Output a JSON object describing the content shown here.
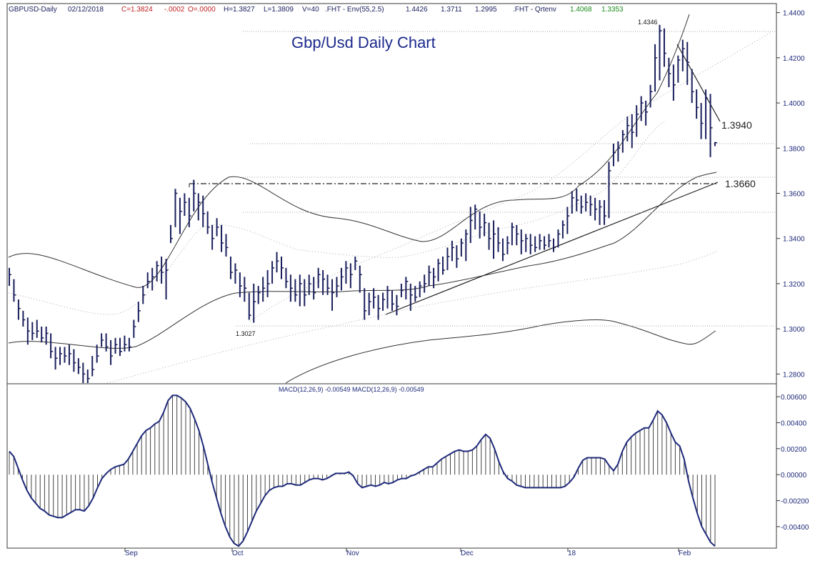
{
  "header": {
    "symbol": "GBPUSD-Daily",
    "date": "02/12/2018",
    "close": "C=1.3824",
    "change": "-.0002",
    "open": "O=.0000",
    "high": "H=1.3827",
    "low": "L=1.3809",
    "volume": "V=40",
    "env_label": ".FHT - Env(55,2.5)",
    "env_values": [
      "1.4426",
      "1.3711",
      "1.2995"
    ],
    "qrtenv_label": ".FHT - Qrtenv",
    "qrtenv_values": [
      "1.4068",
      "1.3353"
    ]
  },
  "colors": {
    "background": "#ffffff",
    "bars": "#1a1f5c",
    "title": "#1c2a8c",
    "close_text": "#c02020",
    "qrtenv_text": "#1e8a1e",
    "env_text": "#1a1f5c",
    "macd_line": "#1f2a7a",
    "axis_text": "#1f2a7a",
    "frame": "#3a3a3a"
  },
  "chart_data": [
    {
      "type": "line",
      "title": "Gbp/Usd Daily Chart",
      "series": [
        {
          "values": [
            [
              1.324,
              1.327,
              1.319
            ],
            [
              1.315,
              1.322,
              1.312
            ],
            [
              1.309,
              1.313,
              1.304
            ],
            [
              1.304,
              1.308,
              1.301
            ],
            [
              1.299,
              1.305,
              1.293
            ],
            [
              1.298,
              1.303,
              1.295
            ],
            [
              1.299,
              1.304,
              1.296
            ],
            [
              1.296,
              1.301,
              1.294
            ],
            [
              1.298,
              1.301,
              1.293
            ],
            [
              1.29,
              1.298,
              1.287
            ],
            [
              1.287,
              1.292,
              1.282
            ],
            [
              1.289,
              1.292,
              1.284
            ],
            [
              1.288,
              1.292,
              1.285
            ],
            [
              1.289,
              1.293,
              1.284
            ],
            [
              1.285,
              1.291,
              1.281
            ],
            [
              1.283,
              1.287,
              1.28
            ],
            [
              1.28,
              1.285,
              1.276
            ],
            [
              1.278,
              1.282,
              1.276
            ],
            [
              1.282,
              1.288,
              1.279
            ],
            [
              1.288,
              1.293,
              1.285
            ],
            [
              1.295,
              1.298,
              1.292
            ],
            [
              1.292,
              1.298,
              1.29
            ],
            [
              1.288,
              1.295,
              1.284
            ],
            [
              1.293,
              1.296,
              1.289
            ],
            [
              1.29,
              1.296,
              1.288
            ],
            [
              1.293,
              1.297,
              1.29
            ],
            [
              1.292,
              1.296,
              1.29
            ],
            [
              1.301,
              1.304,
              1.296
            ],
            [
              1.308,
              1.312,
              1.303
            ],
            [
              1.315,
              1.319,
              1.311
            ],
            [
              1.321,
              1.325,
              1.318
            ],
            [
              1.323,
              1.327,
              1.317
            ],
            [
              1.328,
              1.33,
              1.321
            ],
            [
              1.325,
              1.332,
              1.32
            ],
            [
              1.326,
              1.331,
              1.313
            ],
            [
              1.34,
              1.346,
              1.338
            ],
            [
              1.36,
              1.362,
              1.345
            ],
            [
              1.352,
              1.358,
              1.342
            ],
            [
              1.356,
              1.36,
              1.35
            ],
            [
              1.35,
              1.358,
              1.345
            ],
            [
              1.36,
              1.366,
              1.352
            ],
            [
              1.356,
              1.36,
              1.348
            ],
            [
              1.351,
              1.359,
              1.345
            ],
            [
              1.345,
              1.352,
              1.342
            ],
            [
              1.34,
              1.346,
              1.335
            ],
            [
              1.345,
              1.349,
              1.341
            ],
            [
              1.338,
              1.346,
              1.334
            ],
            [
              1.336,
              1.342,
              1.332
            ],
            [
              1.325,
              1.332,
              1.322
            ],
            [
              1.326,
              1.329,
              1.32
            ],
            [
              1.319,
              1.325,
              1.314
            ],
            [
              1.318,
              1.323,
              1.312
            ],
            [
              1.306,
              1.316,
              1.304
            ],
            [
              1.312,
              1.32,
              1.3027
            ],
            [
              1.316,
              1.319,
              1.311
            ],
            [
              1.318,
              1.323,
              1.312
            ],
            [
              1.32,
              1.326,
              1.314
            ],
            [
              1.327,
              1.33,
              1.32
            ],
            [
              1.33,
              1.334,
              1.325
            ],
            [
              1.327,
              1.332,
              1.322
            ],
            [
              1.321,
              1.327,
              1.318
            ],
            [
              1.318,
              1.324,
              1.312
            ],
            [
              1.315,
              1.322,
              1.312
            ],
            [
              1.32,
              1.324,
              1.31
            ],
            [
              1.315,
              1.322,
              1.31
            ],
            [
              1.32,
              1.324,
              1.315
            ],
            [
              1.316,
              1.323,
              1.313
            ],
            [
              1.324,
              1.327,
              1.318
            ],
            [
              1.322,
              1.326,
              1.315
            ],
            [
              1.318,
              1.324,
              1.315
            ],
            [
              1.316,
              1.322,
              1.308
            ],
            [
              1.319,
              1.323,
              1.314
            ],
            [
              1.323,
              1.327,
              1.317
            ],
            [
              1.327,
              1.33,
              1.32
            ],
            [
              1.324,
              1.329,
              1.318
            ],
            [
              1.33,
              1.332,
              1.326
            ],
            [
              1.324,
              1.328,
              1.316
            ],
            [
              1.308,
              1.318,
              1.304
            ],
            [
              1.312,
              1.316,
              1.306
            ],
            [
              1.314,
              1.318,
              1.309
            ],
            [
              1.309,
              1.315,
              1.304
            ],
            [
              1.313,
              1.316,
              1.308
            ],
            [
              1.317,
              1.319,
              1.309
            ],
            [
              1.311,
              1.317,
              1.308
            ],
            [
              1.31,
              1.315,
              1.306
            ],
            [
              1.317,
              1.32,
              1.314
            ],
            [
              1.321,
              1.323,
              1.313
            ],
            [
              1.315,
              1.32,
              1.308
            ],
            [
              1.314,
              1.319,
              1.312
            ],
            [
              1.319,
              1.321,
              1.314
            ],
            [
              1.32,
              1.324,
              1.316
            ],
            [
              1.325,
              1.328,
              1.319
            ],
            [
              1.323,
              1.327,
              1.318
            ],
            [
              1.329,
              1.331,
              1.321
            ],
            [
              1.326,
              1.332,
              1.324
            ],
            [
              1.332,
              1.336,
              1.326
            ],
            [
              1.336,
              1.339,
              1.33
            ],
            [
              1.331,
              1.337,
              1.327
            ],
            [
              1.338,
              1.34,
              1.332
            ],
            [
              1.342,
              1.344,
              1.33
            ],
            [
              1.348,
              1.354,
              1.338
            ],
            [
              1.353,
              1.355,
              1.344
            ],
            [
              1.345,
              1.352,
              1.34
            ],
            [
              1.347,
              1.351,
              1.341
            ],
            [
              1.34,
              1.347,
              1.335
            ],
            [
              1.342,
              1.348,
              1.331
            ],
            [
              1.338,
              1.345,
              1.334
            ],
            [
              1.333,
              1.34,
              1.33
            ],
            [
              1.338,
              1.341,
              1.333
            ],
            [
              1.345,
              1.347,
              1.337
            ],
            [
              1.342,
              1.346,
              1.337
            ],
            [
              1.339,
              1.344,
              1.333
            ],
            [
              1.34,
              1.342,
              1.334
            ],
            [
              1.337,
              1.342,
              1.333
            ],
            [
              1.336,
              1.341,
              1.334
            ],
            [
              1.339,
              1.342,
              1.335
            ],
            [
              1.337,
              1.341,
              1.335
            ],
            [
              1.339,
              1.342,
              1.336
            ],
            [
              1.336,
              1.34,
              1.334
            ],
            [
              1.342,
              1.344,
              1.336
            ],
            [
              1.346,
              1.348,
              1.34
            ],
            [
              1.35,
              1.354,
              1.342
            ],
            [
              1.358,
              1.361,
              1.351
            ],
            [
              1.357,
              1.362,
              1.352
            ],
            [
              1.354,
              1.359,
              1.351
            ],
            [
              1.356,
              1.36,
              1.352
            ],
            [
              1.355,
              1.359,
              1.35
            ],
            [
              1.353,
              1.358,
              1.348
            ],
            [
              1.354,
              1.357,
              1.346
            ],
            [
              1.35,
              1.357,
              1.346
            ],
            [
              1.37,
              1.374,
              1.349
            ],
            [
              1.378,
              1.382,
              1.372
            ],
            [
              1.38,
              1.383,
              1.374
            ],
            [
              1.386,
              1.388,
              1.378
            ],
            [
              1.39,
              1.394,
              1.383
            ],
            [
              1.387,
              1.395,
              1.38
            ],
            [
              1.395,
              1.399,
              1.385
            ],
            [
              1.4,
              1.403,
              1.392
            ],
            [
              1.396,
              1.401,
              1.39
            ],
            [
              1.405,
              1.408,
              1.398
            ],
            [
              1.42,
              1.426,
              1.405
            ],
            [
              1.432,
              1.4346,
              1.41
            ],
            [
              1.422,
              1.433,
              1.416
            ],
            [
              1.413,
              1.42,
              1.407
            ],
            [
              1.408,
              1.417,
              1.401
            ],
            [
              1.419,
              1.421,
              1.409
            ],
            [
              1.424,
              1.428,
              1.414
            ],
            [
              1.418,
              1.427,
              1.408
            ],
            [
              1.405,
              1.415,
              1.4
            ],
            [
              1.398,
              1.406,
              1.393
            ],
            [
              1.391,
              1.4,
              1.384
            ],
            [
              1.402,
              1.406,
              1.384
            ],
            [
              1.389,
              1.404,
              1.376
            ],
            [
              1.3824,
              1.3827,
              1.3809
            ]
          ]
        }
      ],
      "x_labels": [
        "Sep",
        "Oct",
        "Nov",
        "Dec",
        "18",
        "Feb"
      ],
      "y_ticks": [
        "1.4400",
        "1.4200",
        "1.4000",
        "1.3800",
        "1.3600",
        "1.3400",
        "1.3200",
        "1.3000",
        "1.2800"
      ],
      "ylim": [
        1.276,
        1.444
      ],
      "annotations": {
        "high": "1.4346",
        "low": "1.3027",
        "resistance": "1.3940",
        "support": "1.3660"
      }
    },
    {
      "type": "line",
      "title": "MACD(12,26,9)",
      "header_text": "MACD(12,26,9)  -0.00549  MACD(12,26,9)  -0.00549",
      "y_ticks": [
        "0.00600",
        "0.00400",
        "0.00200",
        "0.00000",
        "-0.00200",
        "-0.00400"
      ],
      "ylim": [
        -0.0056,
        0.0065
      ],
      "values": [
        0.0018,
        0.0014,
        0.0005,
        -0.0004,
        -0.0012,
        -0.0018,
        -0.0022,
        -0.0026,
        -0.0028,
        -0.0031,
        -0.0032,
        -0.0033,
        -0.0033,
        -0.0031,
        -0.0029,
        -0.0027,
        -0.0027,
        -0.0028,
        -0.0024,
        -0.0018,
        -0.001,
        -0.0003,
        0.0001,
        0.0004,
        0.0006,
        0.0007,
        0.0008,
        0.0012,
        0.0018,
        0.0024,
        0.003,
        0.0034,
        0.0036,
        0.0039,
        0.0041,
        0.0048,
        0.0057,
        0.0061,
        0.0061,
        0.0059,
        0.0056,
        0.0051,
        0.0043,
        0.0034,
        0.0022,
        0.0008,
        -0.0006,
        -0.0018,
        -0.003,
        -0.004,
        -0.0048,
        -0.0053,
        -0.0055,
        -0.0051,
        -0.0044,
        -0.0036,
        -0.0028,
        -0.0022,
        -0.0016,
        -0.0012,
        -0.001,
        -0.0009,
        -0.0009,
        -0.0007,
        -0.0007,
        -0.0008,
        -0.0008,
        -0.0006,
        -0.0004,
        -0.0003,
        -0.0003,
        -0.0004,
        -0.0003,
        -0.0001,
        0.0001,
        0.0001,
        0.0001,
        0.0002,
        -0.0001,
        -0.0007,
        -0.001,
        -0.0009,
        -0.0008,
        -0.0009,
        -0.0008,
        -0.0006,
        -0.0007,
        -0.0006,
        -0.0004,
        -0.0003,
        -0.0003,
        -0.0001,
        0.0,
        0.0002,
        0.0004,
        0.0006,
        0.0006,
        0.0009,
        0.0012,
        0.0014,
        0.0016,
        0.0018,
        0.0019,
        0.0018,
        0.0018,
        0.0019,
        0.0022,
        0.0027,
        0.0031,
        0.0028,
        0.002,
        0.001,
        0.0002,
        -0.0003,
        -0.0005,
        -0.0008,
        -0.0009,
        -0.001,
        -0.001,
        -0.001,
        -0.001,
        -0.001,
        -0.001,
        -0.001,
        -0.001,
        -0.001,
        -0.0009,
        -0.0006,
        -0.0002,
        0.0005,
        0.0011,
        0.0013,
        0.0013,
        0.0013,
        0.0013,
        0.0012,
        0.0007,
        0.0003,
        0.0008,
        0.0018,
        0.0025,
        0.0029,
        0.0032,
        0.0034,
        0.0036,
        0.0036,
        0.0042,
        0.0049,
        0.0046,
        0.004,
        0.0032,
        0.0025,
        0.0022,
        0.0012,
        -0.0005,
        -0.0018,
        -0.003,
        -0.004,
        -0.0046,
        -0.0052,
        -0.0055
      ]
    }
  ]
}
